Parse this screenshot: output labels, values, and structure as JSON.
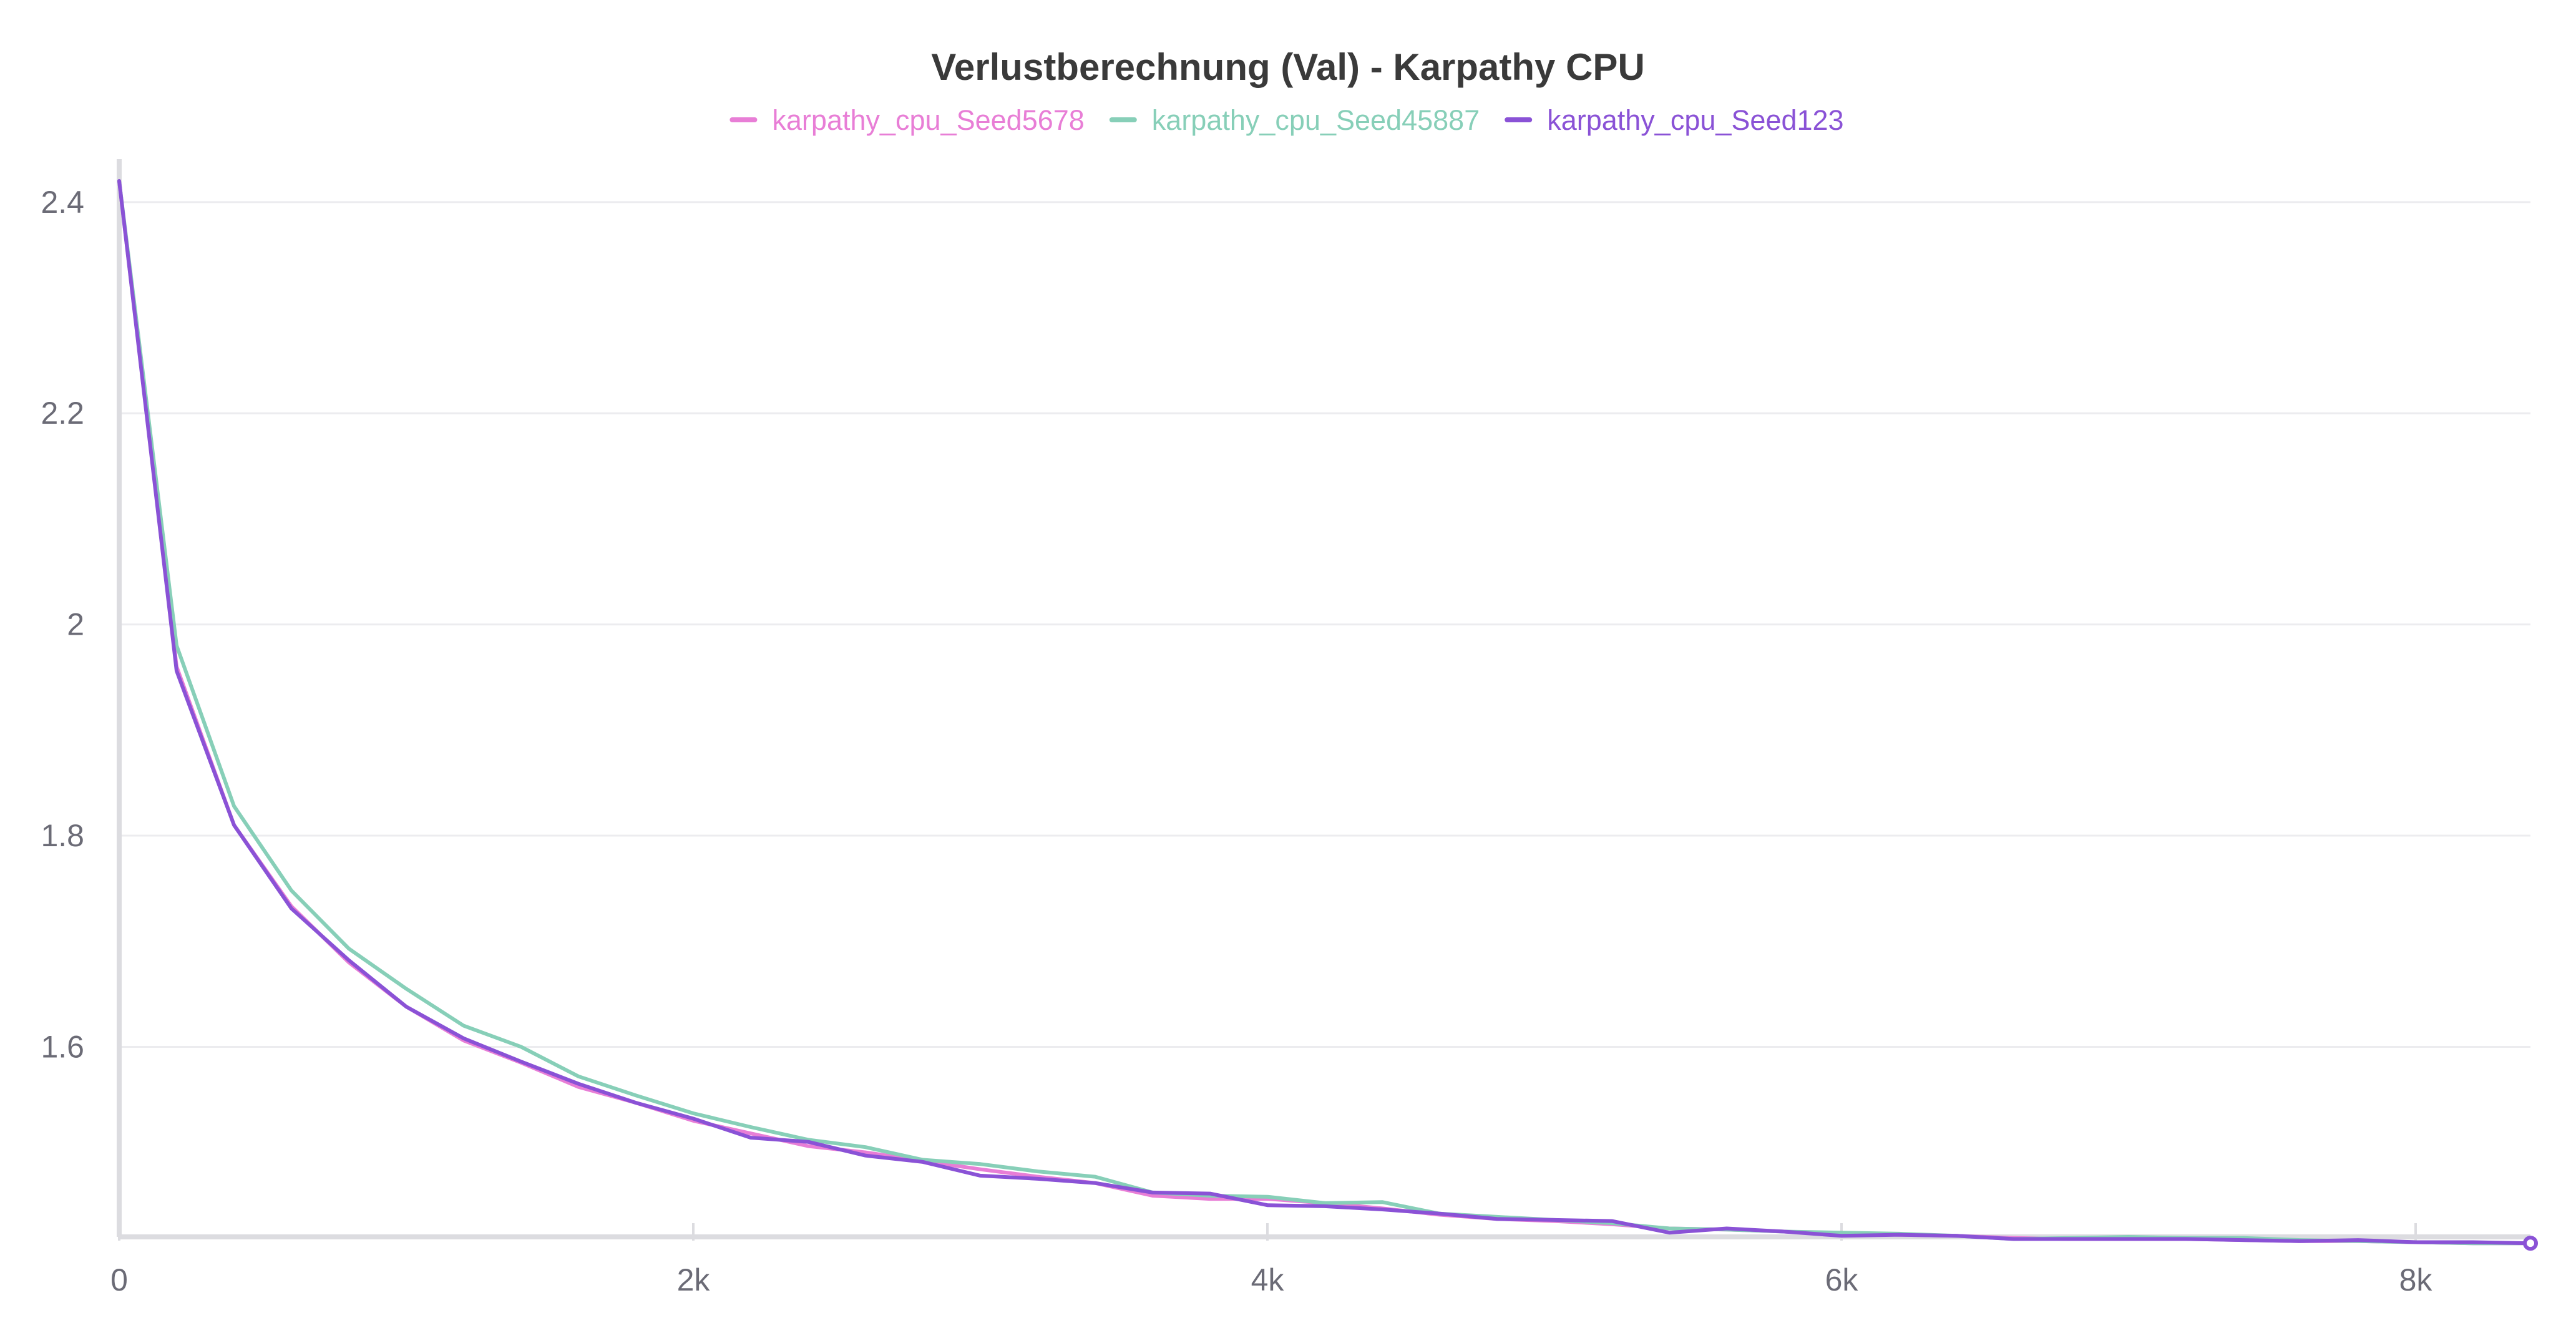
{
  "chart_data": {
    "type": "line",
    "title": "Verlustberechnung (Val) - Karpathy CPU",
    "xlabel": "",
    "ylabel": "",
    "xlim": [
      0,
      8400
    ],
    "ylim": [
      1.42,
      2.42
    ],
    "x_ticks": [
      {
        "value": 0,
        "label": "0"
      },
      {
        "value": 2000,
        "label": "2k"
      },
      {
        "value": 4000,
        "label": "4k"
      },
      {
        "value": 6000,
        "label": "6k"
      },
      {
        "value": 8000,
        "label": "8k"
      }
    ],
    "y_ticks": [
      {
        "value": 1.6,
        "label": "1.6"
      },
      {
        "value": 1.8,
        "label": "1.8"
      },
      {
        "value": 2.0,
        "label": "2"
      },
      {
        "value": 2.2,
        "label": "2.2"
      },
      {
        "value": 2.4,
        "label": "2.4"
      }
    ],
    "grid": true,
    "legend_position": "top-center",
    "x": [
      0,
      200,
      400,
      600,
      800,
      1000,
      1200,
      1400,
      1600,
      1800,
      2000,
      2200,
      2400,
      2600,
      2800,
      3000,
      3200,
      3400,
      3600,
      3800,
      4000,
      4200,
      4400,
      4600,
      4800,
      5000,
      5200,
      5400,
      5600,
      5800,
      6000,
      6200,
      6400,
      6600,
      6800,
      7000,
      7200,
      7400,
      7600,
      7800,
      8000,
      8200,
      8400
    ],
    "series": [
      {
        "name": "karpathy_cpu_Seed5678",
        "color": "#e87ed6",
        "values": [
          2.42,
          1.96,
          1.81,
          1.733,
          1.68,
          1.638,
          1.606,
          1.585,
          1.562,
          1.547,
          1.53,
          1.518,
          1.506,
          1.5,
          1.492,
          1.484,
          1.477,
          1.471,
          1.459,
          1.456,
          1.456,
          1.452,
          1.447,
          1.441,
          1.437,
          1.435,
          1.432,
          1.428,
          1.427,
          1.425,
          1.423,
          1.422,
          1.421,
          1.419,
          1.418,
          1.418,
          1.418,
          1.417,
          1.416,
          1.416,
          1.415,
          1.414,
          1.414
        ]
      },
      {
        "name": "karpathy_cpu_Seed45887",
        "color": "#87cfb8",
        "values": [
          2.42,
          1.98,
          1.828,
          1.748,
          1.693,
          1.655,
          1.62,
          1.6,
          1.572,
          1.554,
          1.537,
          1.524,
          1.512,
          1.505,
          1.493,
          1.489,
          1.482,
          1.477,
          1.462,
          1.459,
          1.458,
          1.452,
          1.453,
          1.442,
          1.439,
          1.436,
          1.433,
          1.428,
          1.427,
          1.425,
          1.424,
          1.423,
          1.421,
          1.418,
          1.419,
          1.42,
          1.419,
          1.419,
          1.417,
          1.416,
          1.415,
          1.414,
          1.414
        ]
      },
      {
        "name": "karpathy_cpu_Seed123",
        "color": "#8a52d6",
        "values": [
          2.42,
          1.956,
          1.81,
          1.731,
          1.682,
          1.638,
          1.608,
          1.586,
          1.565,
          1.547,
          1.532,
          1.514,
          1.51,
          1.497,
          1.491,
          1.478,
          1.475,
          1.471,
          1.462,
          1.461,
          1.45,
          1.449,
          1.446,
          1.442,
          1.437,
          1.436,
          1.435,
          1.424,
          1.428,
          1.425,
          1.421,
          1.422,
          1.421,
          1.418,
          1.418,
          1.418,
          1.418,
          1.417,
          1.416,
          1.417,
          1.415,
          1.415,
          1.414
        ]
      }
    ]
  }
}
